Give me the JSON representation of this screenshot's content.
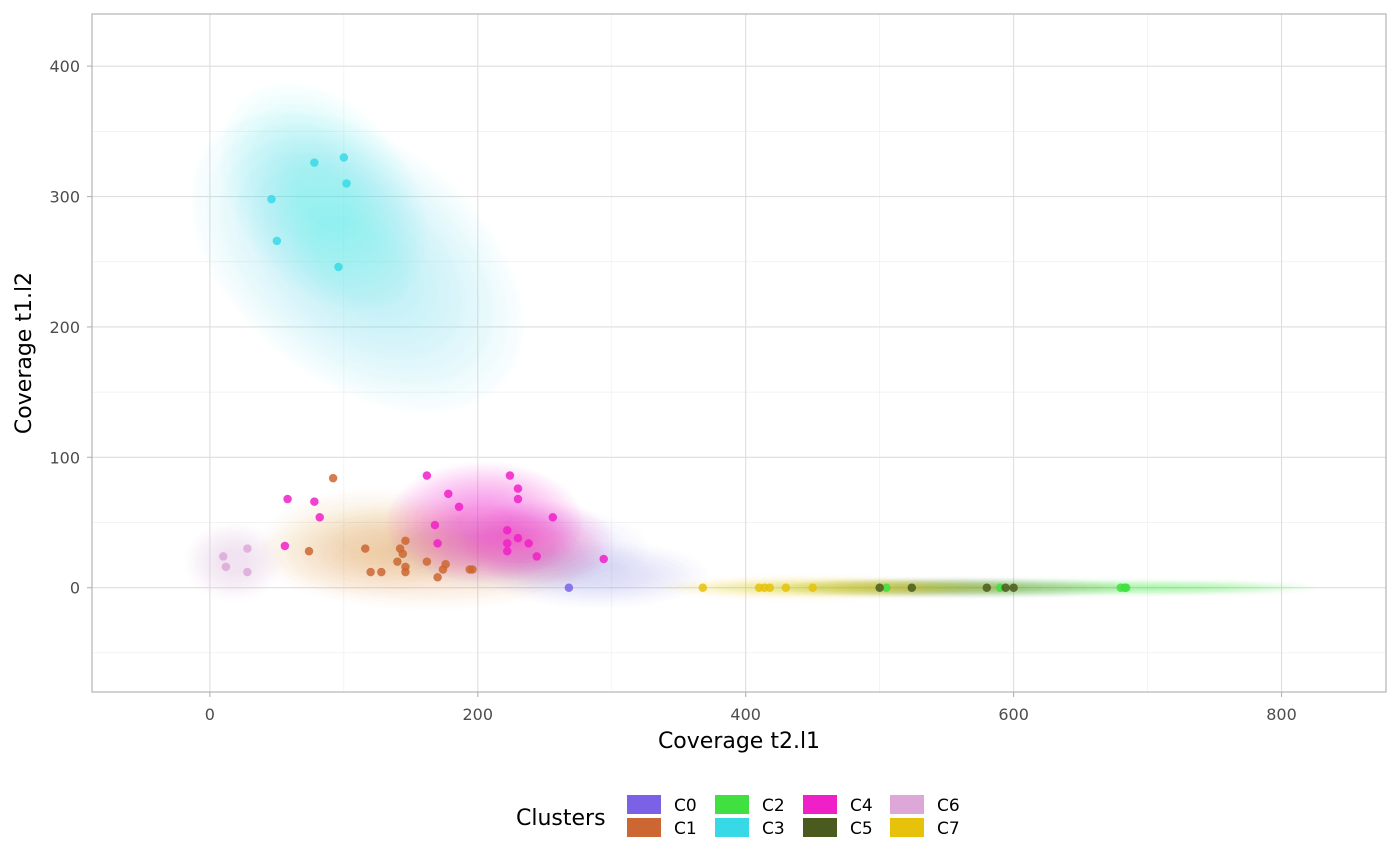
{
  "chart_data": {
    "type": "scatter",
    "title": "",
    "xlabel": "Coverage t2.l1",
    "ylabel": "Coverage t1.l2",
    "xlim": [
      -88,
      878
    ],
    "ylim": [
      -80,
      440
    ],
    "x_ticks": [
      0,
      200,
      400,
      600,
      800
    ],
    "y_ticks": [
      0,
      100,
      200,
      300,
      400
    ],
    "grid": true,
    "legend": {
      "title": "Clusters",
      "position": "bottom"
    },
    "series": [
      {
        "name": "C0",
        "color": "#7B61E6",
        "points": [
          [
            268,
            0
          ]
        ],
        "density": [
          [
            230,
            30,
            60,
            20,
            0.45
          ],
          [
            290,
            10,
            50,
            15,
            0.4
          ]
        ]
      },
      {
        "name": "C1",
        "color": "#CC6633",
        "points": [
          [
            92,
            84
          ],
          [
            74,
            28
          ],
          [
            116,
            30
          ],
          [
            120,
            12
          ],
          [
            128,
            12
          ],
          [
            140,
            20
          ],
          [
            142,
            30
          ],
          [
            144,
            26
          ],
          [
            146,
            36
          ],
          [
            146,
            16
          ],
          [
            146,
            12
          ],
          [
            162,
            20
          ],
          [
            170,
            8
          ],
          [
            174,
            14
          ],
          [
            176,
            18
          ],
          [
            194,
            14
          ],
          [
            196,
            14
          ]
        ],
        "density": [
          [
            165,
            25,
            80,
            25,
            0.45
          ],
          [
            120,
            35,
            50,
            25,
            0.3
          ]
        ]
      },
      {
        "name": "C2",
        "color": "#3FE03F",
        "points": [
          [
            505,
            0
          ],
          [
            590,
            0
          ],
          [
            680,
            0
          ],
          [
            683,
            0
          ],
          [
            684,
            0
          ]
        ],
        "density": [
          [
            600,
            0,
            140,
            4,
            0.55
          ],
          [
            730,
            0,
            60,
            3,
            0.3
          ]
        ]
      },
      {
        "name": "C3",
        "color": "#38D9E6",
        "points": [
          [
            46,
            298
          ],
          [
            50,
            266
          ],
          [
            78,
            326
          ],
          [
            100,
            330
          ],
          [
            102,
            310
          ],
          [
            96,
            246
          ]
        ],
        "density": [
          [
            110,
            250,
            55,
            90,
            -0.55,
            0.75
          ],
          [
            85,
            300,
            40,
            60,
            -0.4,
            0.5
          ]
        ]
      },
      {
        "name": "C4",
        "color": "#F020C8",
        "points": [
          [
            162,
            86
          ],
          [
            168,
            48
          ],
          [
            170,
            34
          ],
          [
            178,
            72
          ],
          [
            186,
            62
          ],
          [
            224,
            86
          ],
          [
            230,
            76
          ],
          [
            230,
            68
          ],
          [
            222,
            44
          ],
          [
            222,
            34
          ],
          [
            222,
            28
          ],
          [
            238,
            34
          ],
          [
            244,
            24
          ],
          [
            230,
            38
          ],
          [
            256,
            54
          ],
          [
            294,
            22
          ],
          [
            58,
            68
          ],
          [
            78,
            66
          ],
          [
            82,
            54
          ],
          [
            56,
            32
          ]
        ],
        "density": [
          [
            205,
            50,
            45,
            28,
            0.85
          ],
          [
            245,
            35,
            35,
            20,
            0.5
          ]
        ]
      },
      {
        "name": "C5",
        "color": "#4B5A1E",
        "points": [
          [
            500,
            0
          ],
          [
            524,
            0
          ],
          [
            580,
            0
          ],
          [
            594,
            0
          ],
          [
            600,
            0
          ]
        ],
        "density": [
          [
            560,
            0,
            80,
            4,
            0.7
          ]
        ]
      },
      {
        "name": "C6",
        "color": "#DDA8D8",
        "points": [
          [
            10,
            24
          ],
          [
            12,
            16
          ],
          [
            28,
            30
          ],
          [
            28,
            12
          ]
        ],
        "density": [
          [
            18,
            20,
            22,
            18,
            0.8
          ]
        ]
      },
      {
        "name": "C7",
        "color": "#E6C20A",
        "points": [
          [
            368,
            0
          ],
          [
            410,
            0
          ],
          [
            414,
            0
          ],
          [
            418,
            0
          ],
          [
            430,
            0
          ],
          [
            450,
            0
          ]
        ],
        "density": [
          [
            450,
            0,
            70,
            5,
            0.8
          ],
          [
            520,
            0,
            60,
            4,
            0.4
          ]
        ]
      }
    ]
  }
}
